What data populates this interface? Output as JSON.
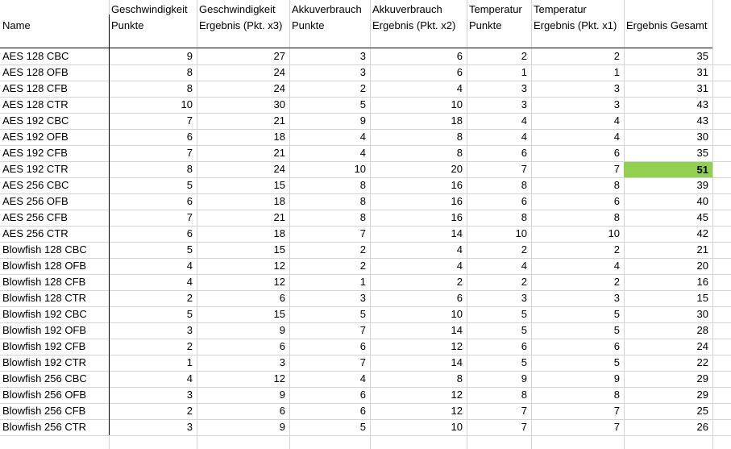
{
  "headers": [
    [
      "",
      "Name"
    ],
    [
      "Geschwindigkeit",
      "Punkte"
    ],
    [
      "Geschwindigkeit",
      "Ergebnis (Pkt. x3)"
    ],
    [
      "Akkuverbrauch",
      "Punkte"
    ],
    [
      "Akkuverbrauch",
      "Ergebnis (Pkt. x2)"
    ],
    [
      "Temperatur",
      "Punkte"
    ],
    [
      "Temperatur",
      "Ergebnis (Pkt. x1)"
    ],
    [
      "",
      "Ergebnis Gesamt"
    ]
  ],
  "rows": [
    [
      "AES 128 CBC",
      "9",
      "27",
      "3",
      "6",
      "2",
      "2",
      "35"
    ],
    [
      "AES 128 OFB",
      "8",
      "24",
      "3",
      "6",
      "1",
      "1",
      "31"
    ],
    [
      "AES 128 CFB",
      "8",
      "24",
      "2",
      "4",
      "3",
      "3",
      "31"
    ],
    [
      "AES 128 CTR",
      "10",
      "30",
      "5",
      "10",
      "3",
      "3",
      "43"
    ],
    [
      "AES 192 CBC",
      "7",
      "21",
      "9",
      "18",
      "4",
      "4",
      "43"
    ],
    [
      "AES 192 OFB",
      "6",
      "18",
      "4",
      "8",
      "4",
      "4",
      "30"
    ],
    [
      "AES 192 CFB",
      "7",
      "21",
      "4",
      "8",
      "6",
      "6",
      "35"
    ],
    [
      "AES 192 CTR",
      "8",
      "24",
      "10",
      "20",
      "7",
      "7",
      "51"
    ],
    [
      "AES 256 CBC",
      "5",
      "15",
      "8",
      "16",
      "8",
      "8",
      "39"
    ],
    [
      "AES 256 OFB",
      "6",
      "18",
      "8",
      "16",
      "6",
      "6",
      "40"
    ],
    [
      "AES 256 CFB",
      "7",
      "21",
      "8",
      "16",
      "8",
      "8",
      "45"
    ],
    [
      "AES 256 CTR",
      "6",
      "18",
      "7",
      "14",
      "10",
      "10",
      "42"
    ],
    [
      "Blowfish 128 CBC",
      "5",
      "15",
      "2",
      "4",
      "2",
      "2",
      "21"
    ],
    [
      "Blowfish 128 OFB",
      "4",
      "12",
      "2",
      "4",
      "4",
      "4",
      "20"
    ],
    [
      "Blowfish 128 CFB",
      "4",
      "12",
      "1",
      "2",
      "2",
      "2",
      "16"
    ],
    [
      "Blowfish 128 CTR",
      "2",
      "6",
      "3",
      "6",
      "3",
      "3",
      "15"
    ],
    [
      "Blowfish 192 CBC",
      "5",
      "15",
      "5",
      "10",
      "5",
      "5",
      "30"
    ],
    [
      "Blowfish 192 OFB",
      "3",
      "9",
      "7",
      "14",
      "5",
      "5",
      "28"
    ],
    [
      "Blowfish 192 CFB",
      "2",
      "6",
      "6",
      "12",
      "6",
      "6",
      "24"
    ],
    [
      "Blowfish 192 CTR",
      "1",
      "3",
      "7",
      "14",
      "5",
      "5",
      "22"
    ],
    [
      "Blowfish 256 CBC",
      "4",
      "12",
      "4",
      "8",
      "9",
      "9",
      "29"
    ],
    [
      "Blowfish 256 OFB",
      "3",
      "9",
      "6",
      "12",
      "8",
      "8",
      "29"
    ],
    [
      "Blowfish 256 CFB",
      "2",
      "6",
      "6",
      "12",
      "7",
      "7",
      "25"
    ],
    [
      "Blowfish 256 CTR",
      "3",
      "9",
      "5",
      "10",
      "7",
      "7",
      "26"
    ]
  ],
  "highlight": {
    "row": 7,
    "col": 7,
    "color": "#92d050"
  }
}
